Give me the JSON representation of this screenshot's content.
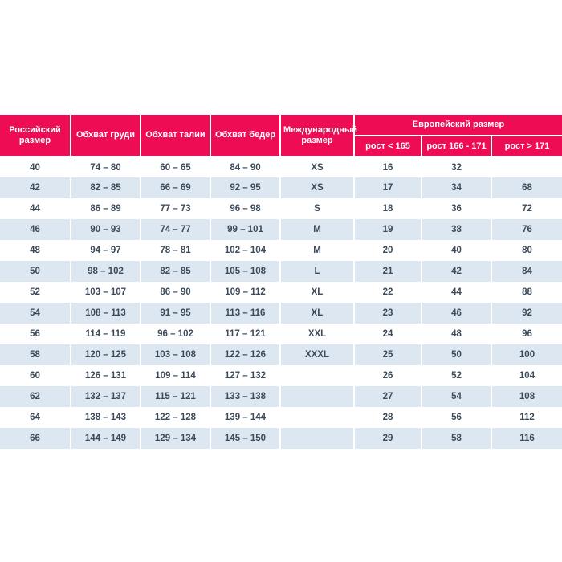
{
  "page": {
    "background": "#ffffff"
  },
  "chart_data": {
    "type": "table",
    "headers": {
      "russian_size": "Российский размер",
      "chest": "Обхват груди",
      "waist": "Обхват талии",
      "hips": "Обхват бедер",
      "international_size": "Международный размер",
      "european_size": "Европейский размер",
      "height_lt_165": "рост < 165",
      "height_166_171": "рост 166 - 171",
      "height_gt_171": "рост > 171"
    },
    "rows": [
      [
        "40",
        "74 – 80",
        "60 – 65",
        "84 – 90",
        "XS",
        "16",
        "32",
        ""
      ],
      [
        "42",
        "82 – 85",
        "66 – 69",
        "92 – 95",
        "XS",
        "17",
        "34",
        "68"
      ],
      [
        "44",
        "86 – 89",
        "77 – 73",
        "96 – 98",
        "S",
        "18",
        "36",
        "72"
      ],
      [
        "46",
        "90 – 93",
        "74 – 77",
        "99 – 101",
        "M",
        "19",
        "38",
        "76"
      ],
      [
        "48",
        "94 – 97",
        "78 – 81",
        "102 – 104",
        "M",
        "20",
        "40",
        "80"
      ],
      [
        "50",
        "98 – 102",
        "82 – 85",
        "105 – 108",
        "L",
        "21",
        "42",
        "84"
      ],
      [
        "52",
        "103 – 107",
        "86 – 90",
        "109 – 112",
        "XL",
        "22",
        "44",
        "88"
      ],
      [
        "54",
        "108 – 113",
        "91 – 95",
        "113 – 116",
        "XL",
        "23",
        "46",
        "92"
      ],
      [
        "56",
        "114 – 119",
        "96 – 102",
        "117 – 121",
        "XXL",
        "24",
        "48",
        "96"
      ],
      [
        "58",
        "120 – 125",
        "103 – 108",
        "122 – 126",
        "XXXL",
        "25",
        "50",
        "100"
      ],
      [
        "60",
        "126 – 131",
        "109 – 114",
        "127 – 132",
        "",
        "26",
        "52",
        "104"
      ],
      [
        "62",
        "132 – 137",
        "115 – 121",
        "133 – 138",
        "",
        "27",
        "54",
        "108"
      ],
      [
        "64",
        "138 – 143",
        "122 – 128",
        "139 – 144",
        "",
        "28",
        "56",
        "112"
      ],
      [
        "66",
        "144 – 149",
        "129 – 134",
        "145 – 150",
        "",
        "29",
        "58",
        "116"
      ]
    ]
  },
  "colors": {
    "header_bg": "#ee0d55",
    "header_text": "#ffffff",
    "stripe_bg": "#dde7f1",
    "body_text": "#3c4a59"
  }
}
